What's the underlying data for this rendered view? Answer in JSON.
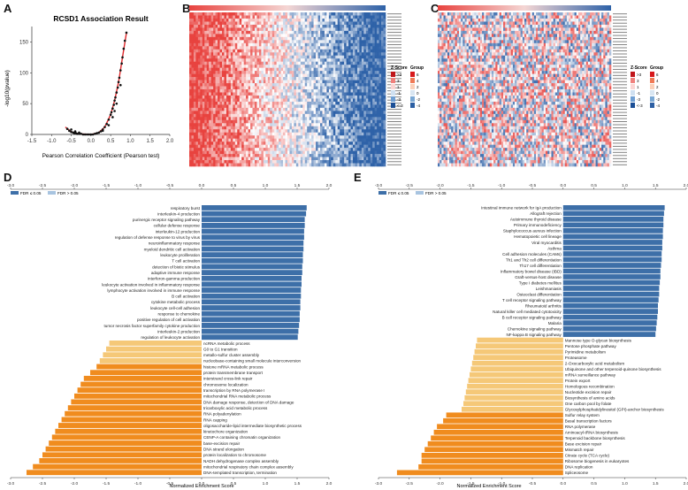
{
  "panels": {
    "a": "A",
    "b": "B",
    "c": "C",
    "d": "D",
    "e": "E"
  },
  "colors": {
    "significant": "#3d6fa8",
    "significant_neg": "#f08c1e",
    "not_significant_neg": "#f5c878",
    "not_significant": "#a8c4e0",
    "heat_red": "#e8433f",
    "heat_blue": "#2e62a8",
    "scatter_point": "#111111",
    "fit_line": "#e0282b"
  },
  "chart_data": [
    {
      "type": "scatter",
      "id": "volcano",
      "title": "RCSD1 Association Result",
      "xlabel": "Pearson Correlation Coefficient (Pearson test)",
      "ylabel": "-log10(pvalue)",
      "xlim": [
        -1.5,
        2.0
      ],
      "ylim": [
        0,
        175
      ],
      "xticks": [
        "-1.5",
        "-1.0",
        "-0.5",
        "0.0",
        "0.5",
        "1.0",
        "1.5",
        "2.0"
      ],
      "yticks": [
        "0",
        "50",
        "100",
        "150"
      ],
      "curve": [
        [
          -0.65,
          12
        ],
        [
          -0.5,
          4
        ],
        [
          -0.3,
          1
        ],
        [
          0.0,
          0
        ],
        [
          0.2,
          3
        ],
        [
          0.35,
          12
        ],
        [
          0.5,
          32
        ],
        [
          0.6,
          55
        ],
        [
          0.7,
          85
        ],
        [
          0.8,
          125
        ],
        [
          0.9,
          165
        ]
      ],
      "points": [
        [
          -0.6,
          9
        ],
        [
          -0.55,
          6
        ],
        [
          -0.5,
          4
        ],
        [
          -0.45,
          3
        ],
        [
          -0.42,
          2
        ],
        [
          -0.38,
          2
        ],
        [
          -0.35,
          1
        ],
        [
          -0.3,
          1
        ],
        [
          -0.25,
          1
        ],
        [
          -0.2,
          0
        ],
        [
          -0.15,
          0
        ],
        [
          -0.1,
          0
        ],
        [
          -0.05,
          0
        ],
        [
          0.0,
          0
        ],
        [
          0.05,
          0
        ],
        [
          0.1,
          1
        ],
        [
          0.15,
          2
        ],
        [
          0.2,
          3
        ],
        [
          0.25,
          5
        ],
        [
          0.3,
          8
        ],
        [
          0.35,
          12
        ],
        [
          0.4,
          17
        ],
        [
          0.45,
          24
        ],
        [
          0.5,
          32
        ],
        [
          0.52,
          36
        ],
        [
          0.55,
          42
        ],
        [
          0.58,
          48
        ],
        [
          0.6,
          55
        ],
        [
          0.62,
          60
        ],
        [
          0.65,
          68
        ],
        [
          0.68,
          76
        ],
        [
          0.7,
          85
        ],
        [
          0.72,
          92
        ],
        [
          0.75,
          104
        ],
        [
          0.78,
          115
        ],
        [
          0.8,
          125
        ],
        [
          0.83,
          139
        ],
        [
          0.86,
          152
        ],
        [
          0.9,
          165
        ],
        [
          -0.5,
          8
        ],
        [
          -0.4,
          5
        ],
        [
          0.3,
          6
        ],
        [
          0.55,
          28
        ],
        [
          0.65,
          50
        ],
        [
          0.75,
          80
        ],
        [
          0.45,
          15
        ],
        [
          0.6,
          38
        ],
        [
          -0.3,
          3
        ]
      ]
    },
    {
      "type": "heatmap",
      "id": "heatmap-b",
      "legend": {
        "zscore_title": "Z-Score",
        "group_title": "Group",
        "zscore_labels": [
          ">3",
          "3",
          "1",
          "-1",
          "-3",
          "<-3"
        ],
        "group_labels": [
          "6",
          "4",
          "2",
          "0",
          "-2",
          "-4"
        ]
      },
      "row_count": 50
    },
    {
      "type": "heatmap",
      "id": "heatmap-c",
      "legend": {
        "zscore_title": "Z-Score",
        "group_title": "Group",
        "zscore_labels": [
          ">3",
          "3",
          "1",
          "-1",
          "-3",
          "<-3"
        ],
        "group_labels": [
          "6",
          "4",
          "2",
          "0",
          "-2",
          "-4"
        ]
      },
      "row_count": 50
    },
    {
      "type": "bar",
      "id": "gsea-d",
      "orientation": "horizontal",
      "xlabel": "Normalized Enrichment Score",
      "xlim": [
        -3.0,
        2.0
      ],
      "xticks": [
        "-3.0",
        "-2.5",
        "-2.0",
        "-1.5",
        "-1.0",
        "-0.5",
        "0.0",
        "0.5",
        "1.0",
        "1.5",
        "2.0"
      ],
      "legend": [
        "FDR ≤ 0.05",
        "FDR > 0.05"
      ],
      "categories": [
        "respiratory burst",
        "interleukin-4 production",
        "purinergic receptor signaling pathway",
        "cellular defense response",
        "interleukin-12 production",
        "regulation of defense response to virus by virus",
        "neuroinflammatory response",
        "myeloid dendritic cell activation",
        "leukocyte proliferation",
        "T cell activation",
        "detection of biotic stimulus",
        "adaptive immune response",
        "interferon-gamma production",
        "leukocyte activation involved in inflammatory response",
        "lymphocyte activation involved in immune response",
        "B cell activation",
        "cytokine metabolic process",
        "leukocyte cell-cell adhesion",
        "response to chemokine",
        "positive regulation of cell activation",
        "tumor necrosis factor superfamily cytokine production",
        "interleukin-2 production",
        "regulation of leukocyte activation",
        "ncRNA metabolic process",
        "G0 to G1 transition",
        "metallo-sulfur cluster assembly",
        "nucleobase-containing small molecule interconversion",
        "histone mRNA metabolic process",
        "protein transmembrane transport",
        "interstrand cross-link repair",
        "chromosome localization",
        "transcription by RNA polymerase I",
        "mitochondrial RNA metabolic process",
        "DNA damage response, detection of DNA damage",
        "tricarboxylic acid metabolic process",
        "RNA polyadenylation",
        "RNA capping",
        "oligosaccharide-lipid intermediate biosynthetic process",
        "kinetochore organization",
        "CENP-A containing chromatin organization",
        "base-excision repair",
        "DNA strand elongation",
        "protein localization to chromosome",
        "NADH dehydrogenase complex assembly",
        "mitochondrial respiratory chain complex assembly",
        "DNA-templated transcription, termination"
      ],
      "values": [
        1.65,
        1.64,
        1.62,
        1.62,
        1.61,
        1.61,
        1.6,
        1.6,
        1.59,
        1.59,
        1.58,
        1.58,
        1.57,
        1.57,
        1.56,
        1.56,
        1.55,
        1.55,
        1.54,
        1.54,
        1.53,
        1.52,
        1.51,
        -1.45,
        -1.5,
        -1.55,
        -1.6,
        -1.65,
        -1.75,
        -1.85,
        -1.9,
        -1.95,
        -2.0,
        -2.05,
        -2.1,
        -2.15,
        -2.2,
        -2.25,
        -2.3,
        -2.35,
        -2.4,
        -2.45,
        -2.5,
        -2.55,
        -2.65,
        -2.75
      ],
      "significant": [
        1,
        1,
        1,
        1,
        1,
        1,
        1,
        1,
        1,
        1,
        1,
        1,
        1,
        1,
        1,
        1,
        1,
        1,
        1,
        1,
        1,
        1,
        1,
        0,
        0,
        0,
        0,
        1,
        1,
        1,
        1,
        1,
        1,
        1,
        1,
        1,
        1,
        1,
        1,
        1,
        1,
        1,
        1,
        1,
        1,
        1
      ]
    },
    {
      "type": "bar",
      "id": "gsea-e",
      "orientation": "horizontal",
      "xlabel": "Normalized Enrichment Score",
      "xlim": [
        -3.0,
        2.0
      ],
      "xticks": [
        "-3.0",
        "-2.5",
        "-2.0",
        "-1.5",
        "-1.0",
        "-0.5",
        "0.0",
        "0.5",
        "1.0",
        "1.5",
        "2.0"
      ],
      "legend": [
        "FDR ≤ 0.05",
        "FDR > 0.05"
      ],
      "categories": [
        "Intestinal immune network for IgA production",
        "Allograft rejection",
        "Autoimmune thyroid disease",
        "Primary immunodeficiency",
        "Staphylococcus aureus infection",
        "Hematopoietic cell lineage",
        "Viral myocarditis",
        "Asthma",
        "Cell adhesion molecules (CAMs)",
        "Th1 and Th2 cell differentiation",
        "Th17 cell differentiation",
        "Inflammatory bowel disease (IBD)",
        "Graft-versus-host disease",
        "Type I diabetes mellitus",
        "Leishmaniasis",
        "Osteoclast differentiation",
        "T cell receptor signaling pathway",
        "Rheumatoid arthritis",
        "Natural killer cell mediated cytotoxicity",
        "B cell receptor signaling pathway",
        "Malaria",
        "Chemokine signaling pathway",
        "NF-kappa B signaling pathway",
        "Mannose type O-glycan biosynthesis",
        "Pentose phosphate pathway",
        "Pyrimidine metabolism",
        "Proteasome",
        "2-Oxocarboxylic acid metabolism",
        "Ubiquinone and other terpenoid-quinone biosynthesis",
        "mRNA surveillance pathway",
        "Protein export",
        "Homologous recombination",
        "Nucleotide excision repair",
        "Biosynthesis of amino acids",
        "One carbon pool by folate",
        "Glycosylphosphatidylinositol (GPI)-anchor biosynthesis",
        "Sulfur relay system",
        "Basal transcription factors",
        "RNA polymerase",
        "Aminoacyl-tRNA biosynthesis",
        "Terpenoid backbone biosynthesis",
        "Base excision repair",
        "Mismatch repair",
        "Citrate cycle (TCA cycle)",
        "Ribosome biogenesis in eukaryotes",
        "DNA replication",
        "Spliceosome"
      ],
      "values": [
        1.65,
        1.64,
        1.63,
        1.63,
        1.62,
        1.62,
        1.61,
        1.61,
        1.6,
        1.6,
        1.59,
        1.58,
        1.58,
        1.57,
        1.56,
        1.56,
        1.55,
        1.54,
        1.54,
        1.53,
        1.52,
        1.51,
        1.5,
        -1.4,
        -1.42,
        -1.44,
        -1.46,
        -1.48,
        -1.5,
        -1.52,
        -1.54,
        -1.56,
        -1.58,
        -1.6,
        -1.62,
        -1.65,
        -1.9,
        -1.95,
        -2.05,
        -2.1,
        -2.15,
        -2.2,
        -2.25,
        -2.3,
        -2.3,
        -2.35,
        -2.7
      ],
      "significant": [
        1,
        1,
        1,
        1,
        1,
        1,
        1,
        1,
        1,
        1,
        1,
        1,
        1,
        1,
        1,
        1,
        1,
        1,
        1,
        1,
        1,
        1,
        1,
        0,
        0,
        0,
        0,
        0,
        0,
        0,
        0,
        0,
        0,
        0,
        0,
        0,
        1,
        1,
        1,
        1,
        1,
        1,
        1,
        1,
        1,
        1,
        1
      ]
    }
  ]
}
